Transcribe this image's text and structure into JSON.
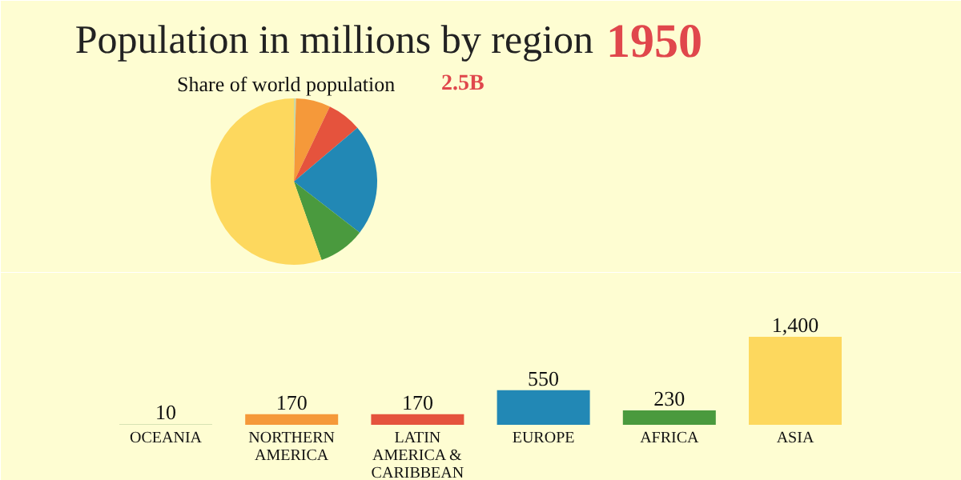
{
  "chart_data": [
    {
      "type": "pie",
      "title": "Population in millions by region",
      "subtitle": "Share of world population",
      "annotations": [
        "1950",
        "2.5B"
      ],
      "categories": [
        null,
        null,
        null,
        null,
        null,
        null
      ],
      "values": [
        0.4,
        6.7,
        6.7,
        21.7,
        9.1,
        55.4
      ],
      "colors": [
        "#c8d8a8",
        "#f5993a",
        "#e5533d",
        "#2288b5",
        "#4a9a3e",
        "#fdd85e"
      ]
    },
    {
      "type": "bar",
      "categories": [
        "OCEANIA",
        "NORTHERN AMERICA",
        "LATIN AMERICA & CARIBBEAN",
        "EUROPE",
        "AFRICA",
        "ASIA"
      ],
      "values": [
        10,
        170,
        170,
        550,
        230,
        1400
      ],
      "colors": [
        "#c8d8a8",
        "#f5993a",
        "#e5533d",
        "#2288b5",
        "#4a9a3e",
        "#fdd85e"
      ],
      "value_labels": [
        "10",
        "170",
        "170",
        "550",
        "230",
        "1,400"
      ]
    }
  ]
}
